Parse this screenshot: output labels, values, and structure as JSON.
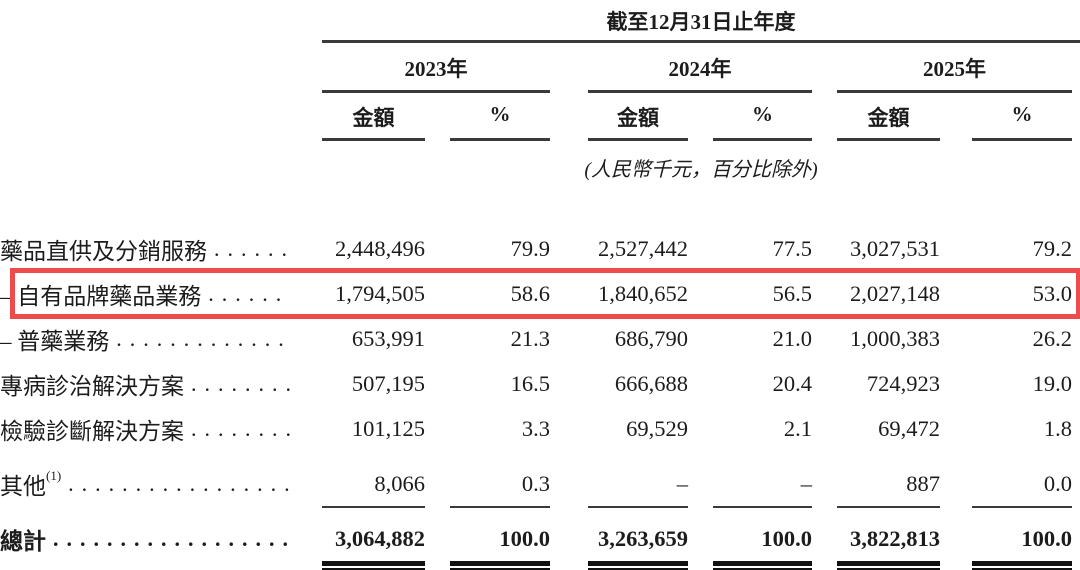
{
  "table": {
    "period_title": "截至12月31日止年度",
    "years": [
      {
        "label": "2023年"
      },
      {
        "label": "2024年"
      },
      {
        "label": "2025年"
      }
    ],
    "amount_header": "金額",
    "percent_header": "%",
    "units_note": "(人民幣千元，百分比除外)",
    "highlight_color": "#ee4c4c",
    "rows": [
      {
        "label": "藥品直供及分銷服務",
        "dots": "......",
        "values": [
          "2,448,496",
          "79.9",
          "2,527,442",
          "77.5",
          "3,027,531",
          "79.2"
        ]
      },
      {
        "label": "– 自有品牌藥品業務",
        "dots": "......",
        "highlighted": true,
        "values": [
          "1,794,505",
          "58.6",
          "1,840,652",
          "56.5",
          "2,027,148",
          "53.0"
        ]
      },
      {
        "label": "– 普藥業務",
        "dots": ".............",
        "values": [
          "653,991",
          "21.3",
          "686,790",
          "21.0",
          "1,000,383",
          "26.2"
        ]
      },
      {
        "label": "專病診治解決方案",
        "dots": "........",
        "values": [
          "507,195",
          "16.5",
          "666,688",
          "20.4",
          "724,923",
          "19.0"
        ]
      },
      {
        "label": "檢驗診斷解決方案",
        "dots": "........",
        "values": [
          "101,125",
          "3.3",
          "69,529",
          "2.1",
          "69,472",
          "1.8"
        ]
      },
      {
        "label": "其他",
        "footnote": "(1)",
        "dots": ".................",
        "ruled": true,
        "values": [
          "8,066",
          "0.3",
          "–",
          "–",
          "887",
          "0.0"
        ]
      },
      {
        "label": "總計",
        "dots": "..................",
        "total": true,
        "values": [
          "3,064,882",
          "100.0",
          "3,263,659",
          "100.0",
          "3,822,813",
          "100.0"
        ]
      }
    ]
  }
}
